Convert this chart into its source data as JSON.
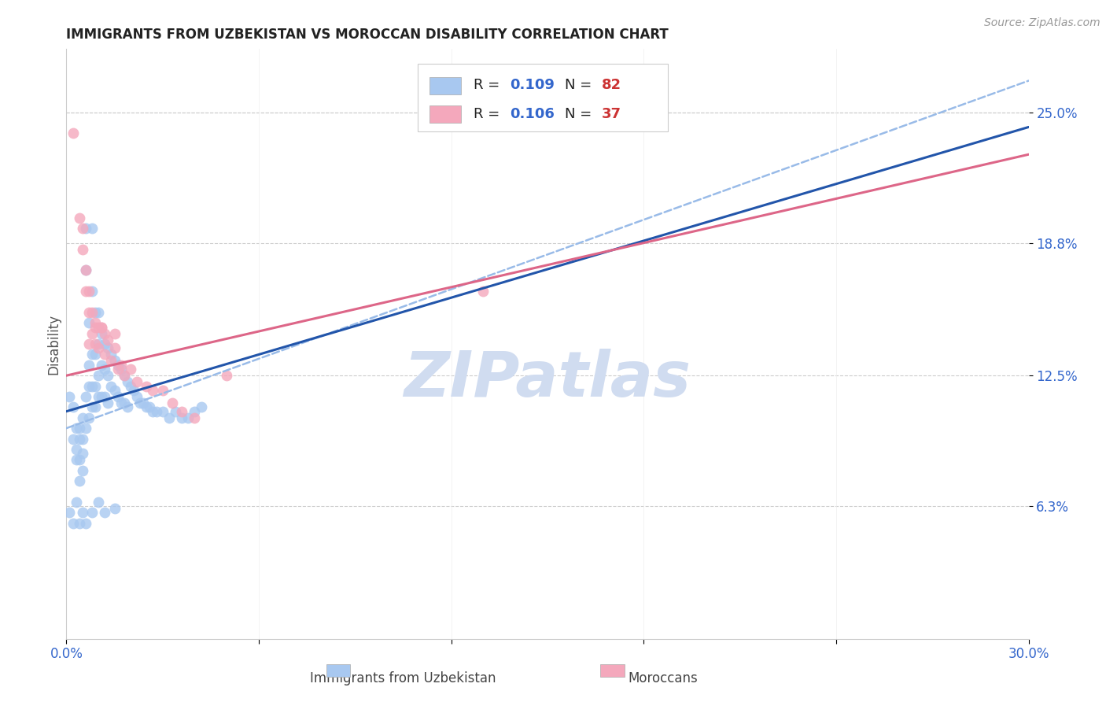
{
  "title": "IMMIGRANTS FROM UZBEKISTAN VS MOROCCAN DISABILITY CORRELATION CHART",
  "source": "Source: ZipAtlas.com",
  "ylabel": "Disability",
  "y_tick_labels": [
    "25.0%",
    "18.8%",
    "12.5%",
    "6.3%"
  ],
  "y_tick_values": [
    0.25,
    0.188,
    0.125,
    0.063
  ],
  "xlim": [
    0.0,
    0.3
  ],
  "ylim": [
    0.0,
    0.28
  ],
  "blue_color": "#A8C8F0",
  "pink_color": "#F4A8BC",
  "blue_line_color": "#2255AA",
  "pink_line_color": "#DD6688",
  "blue_dash_color": "#99BBE8",
  "watermark": "ZIPatlas",
  "watermark_color": "#D0DCF0",
  "blue_x": [
    0.001,
    0.002,
    0.002,
    0.003,
    0.003,
    0.003,
    0.004,
    0.004,
    0.004,
    0.004,
    0.005,
    0.005,
    0.005,
    0.005,
    0.006,
    0.006,
    0.006,
    0.006,
    0.007,
    0.007,
    0.007,
    0.007,
    0.008,
    0.008,
    0.008,
    0.008,
    0.008,
    0.009,
    0.009,
    0.009,
    0.009,
    0.01,
    0.01,
    0.01,
    0.01,
    0.011,
    0.011,
    0.011,
    0.012,
    0.012,
    0.012,
    0.013,
    0.013,
    0.013,
    0.014,
    0.014,
    0.015,
    0.015,
    0.016,
    0.016,
    0.017,
    0.017,
    0.018,
    0.018,
    0.019,
    0.019,
    0.02,
    0.021,
    0.022,
    0.023,
    0.024,
    0.025,
    0.026,
    0.027,
    0.028,
    0.03,
    0.032,
    0.034,
    0.036,
    0.038,
    0.04,
    0.042,
    0.001,
    0.002,
    0.003,
    0.004,
    0.005,
    0.006,
    0.008,
    0.01,
    0.012,
    0.015
  ],
  "blue_y": [
    0.115,
    0.095,
    0.11,
    0.09,
    0.1,
    0.085,
    0.095,
    0.1,
    0.085,
    0.075,
    0.105,
    0.095,
    0.088,
    0.08,
    0.175,
    0.195,
    0.115,
    0.1,
    0.15,
    0.13,
    0.12,
    0.105,
    0.195,
    0.165,
    0.135,
    0.12,
    0.11,
    0.155,
    0.135,
    0.12,
    0.11,
    0.155,
    0.14,
    0.125,
    0.115,
    0.145,
    0.13,
    0.115,
    0.14,
    0.128,
    0.115,
    0.138,
    0.125,
    0.112,
    0.135,
    0.12,
    0.132,
    0.118,
    0.13,
    0.115,
    0.128,
    0.112,
    0.125,
    0.112,
    0.122,
    0.11,
    0.12,
    0.118,
    0.115,
    0.112,
    0.112,
    0.11,
    0.11,
    0.108,
    0.108,
    0.108,
    0.105,
    0.108,
    0.105,
    0.105,
    0.108,
    0.11,
    0.06,
    0.055,
    0.065,
    0.055,
    0.06,
    0.055,
    0.06,
    0.065,
    0.06,
    0.062
  ],
  "pink_x": [
    0.002,
    0.004,
    0.005,
    0.005,
    0.006,
    0.006,
    0.007,
    0.007,
    0.008,
    0.008,
    0.009,
    0.009,
    0.01,
    0.01,
    0.011,
    0.012,
    0.012,
    0.013,
    0.014,
    0.015,
    0.016,
    0.017,
    0.018,
    0.02,
    0.022,
    0.025,
    0.027,
    0.03,
    0.033,
    0.036,
    0.04,
    0.05,
    0.007,
    0.009,
    0.011,
    0.015,
    0.13
  ],
  "pink_y": [
    0.24,
    0.2,
    0.195,
    0.185,
    0.175,
    0.165,
    0.165,
    0.155,
    0.155,
    0.145,
    0.15,
    0.14,
    0.148,
    0.138,
    0.148,
    0.145,
    0.135,
    0.142,
    0.132,
    0.138,
    0.128,
    0.13,
    0.125,
    0.128,
    0.122,
    0.12,
    0.118,
    0.118,
    0.112,
    0.108,
    0.105,
    0.125,
    0.14,
    0.148,
    0.148,
    0.145,
    0.165
  ],
  "blue_slope": 0.45,
  "blue_intercept": 0.108,
  "pink_slope": 0.35,
  "pink_intercept": 0.125,
  "blue_dash_slope": 0.55,
  "blue_dash_intercept": 0.1
}
